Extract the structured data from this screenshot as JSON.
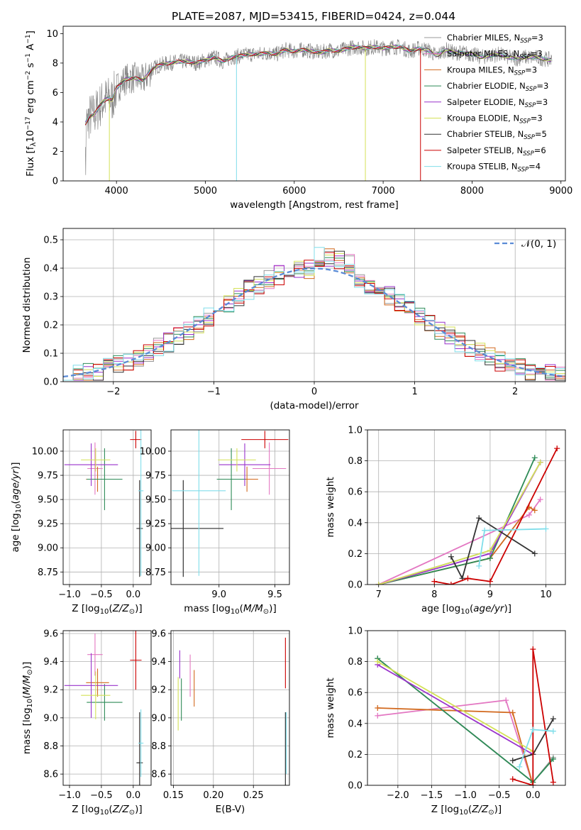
{
  "figure_title": "PLATE=2087, MJD=53415, FIBERID=0424, z=0.044",
  "colors": {
    "Chabrier MILES": "#999999",
    "Salpeter MILES": "#e377c2",
    "Kroupa MILES": "#d2691e",
    "Chabrier ELODIE": "#2e8b57",
    "Salpeter ELODIE": "#9932cc",
    "Kroupa ELODIE": "#d4e157",
    "Chabrier STELIB": "#333333",
    "Salpeter STELIB": "#cc0000",
    "Kroupa STELIB": "#80deea",
    "gaussian": "#5b8bd6",
    "grid": "#b0b0b0"
  },
  "chart_data": [
    {
      "id": "spectrum",
      "type": "line",
      "xlabel": "wavelength [Angstrom, rest frame]",
      "ylabel": "Flux [f",
      "xlim": [
        3400,
        9050
      ],
      "ylim": [
        0,
        10.5
      ],
      "xticks": [
        "4000",
        "5000",
        "6000",
        "7000",
        "8000",
        "9000"
      ],
      "yticks": [
        "0",
        "2",
        "4",
        "6",
        "8",
        "10"
      ],
      "legend": [
        {
          "name": "Chabrier MILES",
          "n": "3"
        },
        {
          "name": "Salpeter MILES",
          "n": "3"
        },
        {
          "name": "Kroupa MILES",
          "n": "3"
        },
        {
          "name": "Chabrier ELODIE",
          "n": "3"
        },
        {
          "name": "Salpeter ELODIE",
          "n": "3"
        },
        {
          "name": "Kroupa ELODIE",
          "n": "3"
        },
        {
          "name": "Chabrier STELIB",
          "n": "5"
        },
        {
          "name": "Salpeter STELIB",
          "n": "6"
        },
        {
          "name": "Kroupa STELIB",
          "n": "4"
        }
      ],
      "data_points": [
        [
          3650,
          3.9
        ],
        [
          3700,
          4.4
        ],
        [
          3750,
          4.5
        ],
        [
          3800,
          5.0
        ],
        [
          3850,
          5.4
        ],
        [
          3900,
          5.6
        ],
        [
          3950,
          5.5
        ],
        [
          4000,
          6.3
        ],
        [
          4100,
          6.9
        ],
        [
          4200,
          7.0
        ],
        [
          4300,
          6.8
        ],
        [
          4400,
          7.6
        ],
        [
          4500,
          7.9
        ],
        [
          4600,
          8.0
        ],
        [
          4700,
          8.1
        ],
        [
          4800,
          8.1
        ],
        [
          4900,
          8.0
        ],
        [
          5000,
          8.2
        ],
        [
          5100,
          8.4
        ],
        [
          5200,
          8.1
        ],
        [
          5300,
          8.4
        ],
        [
          5400,
          8.5
        ],
        [
          5500,
          8.6
        ],
        [
          5600,
          8.6
        ],
        [
          5700,
          8.7
        ],
        [
          5800,
          8.6
        ],
        [
          5900,
          8.9
        ],
        [
          6000,
          8.8
        ],
        [
          6100,
          8.9
        ],
        [
          6200,
          8.8
        ],
        [
          6300,
          8.7
        ],
        [
          6400,
          8.9
        ],
        [
          6500,
          8.8
        ],
        [
          6600,
          9.0
        ],
        [
          6700,
          9.1
        ],
        [
          6800,
          9.0
        ],
        [
          6900,
          9.1
        ],
        [
          7000,
          9.0
        ],
        [
          7100,
          9.1
        ],
        [
          7200,
          9.1
        ],
        [
          7300,
          8.8
        ],
        [
          7400,
          9.0
        ],
        [
          7500,
          8.9
        ],
        [
          7600,
          8.5
        ],
        [
          7700,
          8.9
        ],
        [
          7800,
          8.7
        ],
        [
          7900,
          8.7
        ],
        [
          8000,
          8.6
        ],
        [
          8100,
          8.4
        ],
        [
          8200,
          8.5
        ],
        [
          8300,
          8.6
        ],
        [
          8400,
          8.4
        ],
        [
          8500,
          8.3
        ],
        [
          8600,
          8.4
        ],
        [
          8700,
          8.4
        ],
        [
          8800,
          8.3
        ],
        [
          8900,
          8.2
        ]
      ]
    },
    {
      "id": "residual-histogram",
      "type": "line",
      "xlabel": "(data-model)/error",
      "ylabel": "Normed distribution",
      "xlim": [
        -2.5,
        2.5
      ],
      "ylim": [
        0,
        0.54
      ],
      "xticks": [
        "−2",
        "−1",
        "0",
        "1",
        "2"
      ],
      "yticks": [
        "0.0",
        "0.1",
        "0.2",
        "0.3",
        "0.4",
        "0.5"
      ],
      "legend_label": "𝒩(0, 1)",
      "gaussian": {
        "mean": 0,
        "sigma": 1
      }
    },
    {
      "id": "age-vs-Z",
      "type": "scatter",
      "xlabel": "Z [log",
      "ylabel": "age  [log",
      "xlim": [
        -1.1,
        0.28
      ],
      "ylim": [
        8.62,
        10.22
      ],
      "xticks": [
        "−1.0",
        "−0.5",
        "0.0"
      ],
      "yticks": [
        "8.75",
        "9.00",
        "9.25",
        "9.50",
        "9.75",
        "10.00"
      ],
      "points": [
        {
          "series": "Chabrier MILES",
          "x": 0.1,
          "y": 9.2,
          "xerr": 0.04,
          "yerr": 0.5
        },
        {
          "series": "Salpeter MILES",
          "x": -0.6,
          "y": 9.82,
          "xerr": 0.12,
          "yerr": 0.27
        },
        {
          "series": "Kroupa MILES",
          "x": -0.56,
          "y": 9.71,
          "xerr": 0.18,
          "yerr": 0.13
        },
        {
          "series": "Chabrier ELODIE",
          "x": -0.45,
          "y": 9.71,
          "xerr": 0.28,
          "yerr": 0.32
        },
        {
          "series": "Salpeter ELODIE",
          "x": -0.66,
          "y": 9.86,
          "xerr": 0.42,
          "yerr": 0.22
        },
        {
          "series": "Kroupa ELODIE",
          "x": -0.59,
          "y": 9.91,
          "xerr": 0.23,
          "yerr": 0.12
        },
        {
          "series": "Chabrier STELIB",
          "x": 0.1,
          "y": 9.2,
          "xerr": 0.05,
          "yerr": 0.5
        },
        {
          "series": "Salpeter STELIB",
          "x": 0.04,
          "y": 10.12,
          "xerr": 0.09,
          "yerr": 0.09
        },
        {
          "series": "Kroupa STELIB",
          "x": 0.12,
          "y": 9.59,
          "xerr": 0.04,
          "yerr": 0.88
        }
      ]
    },
    {
      "id": "age-vs-mass",
      "type": "scatter",
      "xlabel": "mass [log",
      "ylabel": "",
      "xlim": [
        8.57,
        9.63
      ],
      "ylim": [
        8.62,
        10.22
      ],
      "xticks": [
        "9.0",
        "9.5"
      ],
      "yticks": [
        "8.75",
        "9.00",
        "9.25",
        "9.50",
        "9.75",
        "10.00"
      ],
      "points": [
        {
          "series": "Chabrier MILES",
          "x": 8.68,
          "y": 9.2,
          "xerr": 0.36,
          "yerr": 0.5
        },
        {
          "series": "Salpeter MILES",
          "x": 9.45,
          "y": 9.82,
          "xerr": 0.15,
          "yerr": 0.27
        },
        {
          "series": "Kroupa MILES",
          "x": 9.25,
          "y": 9.71,
          "xerr": 0.1,
          "yerr": 0.13
        },
        {
          "series": "Chabrier ELODIE",
          "x": 9.11,
          "y": 9.71,
          "xerr": 0.13,
          "yerr": 0.32
        },
        {
          "series": "Salpeter ELODIE",
          "x": 9.23,
          "y": 9.86,
          "xerr": 0.23,
          "yerr": 0.22
        },
        {
          "series": "Kroupa ELODIE",
          "x": 9.16,
          "y": 9.91,
          "xerr": 0.17,
          "yerr": 0.12
        },
        {
          "series": "Chabrier STELIB",
          "x": 8.68,
          "y": 9.2,
          "xerr": 0.36,
          "yerr": 0.5
        },
        {
          "series": "Salpeter STELIB",
          "x": 9.41,
          "y": 10.12,
          "xerr": 0.21,
          "yerr": 0.09
        },
        {
          "series": "Kroupa STELIB",
          "x": 8.82,
          "y": 9.59,
          "xerr": 0.24,
          "yerr": 0.88
        }
      ]
    },
    {
      "id": "mass-weight-vs-age",
      "type": "line",
      "xlabel": "age  [log",
      "ylabel": "mass weight",
      "xlim": [
        6.8,
        10.35
      ],
      "ylim": [
        0,
        1.0
      ],
      "xticks": [
        "7",
        "8",
        "9",
        "10"
      ],
      "yticks": [
        "0.0",
        "0.2",
        "0.4",
        "0.6",
        "0.8",
        "1.0"
      ],
      "series": [
        {
          "name": "Chabrier MILES",
          "x": [
            7.0,
            9.0,
            9.9
          ],
          "y": [
            0.0,
            0.22,
            0.79
          ]
        },
        {
          "name": "Salpeter MILES",
          "x": [
            7.0,
            9.7,
            9.9
          ],
          "y": [
            0.0,
            0.45,
            0.55
          ]
        },
        {
          "name": "Kroupa MILES",
          "x": [
            7.0,
            9.0,
            9.7,
            9.8
          ],
          "y": [
            0.0,
            0.17,
            0.5,
            0.48
          ]
        },
        {
          "name": "Chabrier ELODIE",
          "x": [
            7.0,
            9.0,
            9.8
          ],
          "y": [
            0.0,
            0.17,
            0.82
          ]
        },
        {
          "name": "Salpeter ELODIE",
          "x": [
            7.0,
            9.0,
            9.9
          ],
          "y": [
            0.0,
            0.2,
            0.79
          ]
        },
        {
          "name": "Kroupa ELODIE",
          "x": [
            7.0,
            9.0,
            9.9
          ],
          "y": [
            0.0,
            0.22,
            0.79
          ]
        },
        {
          "name": "Chabrier STELIB",
          "x": [
            8.3,
            8.5,
            8.8,
            9.8
          ],
          "y": [
            0.18,
            0.04,
            0.43,
            0.2
          ]
        },
        {
          "name": "Salpeter STELIB",
          "x": [
            8.0,
            8.3,
            8.6,
            9.0,
            10.2
          ],
          "y": [
            0.02,
            0.0,
            0.04,
            0.02,
            0.88
          ]
        },
        {
          "name": "Kroupa STELIB",
          "x": [
            8.8,
            8.9,
            10.0
          ],
          "y": [
            0.12,
            0.35,
            0.36
          ]
        }
      ]
    },
    {
      "id": "mass-vs-Z",
      "type": "scatter",
      "xlabel": "Z [log",
      "ylabel": "mass [log",
      "xlim": [
        -1.1,
        0.28
      ],
      "ylim": [
        8.52,
        9.62
      ],
      "xticks": [
        "−1.0",
        "−0.5",
        "0.0"
      ],
      "yticks": [
        "8.6",
        "8.8",
        "9.0",
        "9.2",
        "9.4",
        "9.6"
      ],
      "points": [
        {
          "series": "Chabrier MILES",
          "x": 0.1,
          "y": 8.68,
          "xerr": 0.04,
          "yerr": 0.36
        },
        {
          "series": "Salpeter MILES",
          "x": -0.6,
          "y": 9.45,
          "xerr": 0.12,
          "yerr": 0.15
        },
        {
          "series": "Kroupa MILES",
          "x": -0.56,
          "y": 9.25,
          "xerr": 0.18,
          "yerr": 0.1
        },
        {
          "series": "Chabrier ELODIE",
          "x": -0.45,
          "y": 9.11,
          "xerr": 0.28,
          "yerr": 0.13
        },
        {
          "series": "Salpeter ELODIE",
          "x": -0.66,
          "y": 9.23,
          "xerr": 0.42,
          "yerr": 0.23
        },
        {
          "series": "Kroupa ELODIE",
          "x": -0.59,
          "y": 9.16,
          "xerr": 0.23,
          "yerr": 0.17
        },
        {
          "series": "Chabrier STELIB",
          "x": 0.1,
          "y": 8.68,
          "xerr": 0.05,
          "yerr": 0.36
        },
        {
          "series": "Salpeter STELIB",
          "x": 0.04,
          "y": 9.41,
          "xerr": 0.09,
          "yerr": 0.21
        },
        {
          "series": "Kroupa STELIB",
          "x": 0.12,
          "y": 8.82,
          "xerr": 0.04,
          "yerr": 0.24
        }
      ]
    },
    {
      "id": "mass-vs-EBV",
      "type": "scatter",
      "xlabel": "E(B-V)",
      "ylabel": "",
      "xlim": [
        0.147,
        0.295
      ],
      "ylim": [
        8.52,
        9.62
      ],
      "xticks": [
        "0.15",
        "0.20",
        "0.25"
      ],
      "yticks": [
        "8.6",
        "8.8",
        "9.0",
        "9.2",
        "9.4",
        "9.6"
      ],
      "points": [
        {
          "series": "Chabrier MILES",
          "x": 0.29,
          "y": 8.68,
          "xerr": 0.0,
          "yerr": 0.36
        },
        {
          "series": "Salpeter MILES",
          "x": 0.171,
          "y": 9.3,
          "xerr": 0.0,
          "yerr": 0.15
        },
        {
          "series": "Kroupa MILES",
          "x": 0.176,
          "y": 9.21,
          "xerr": 0.0,
          "yerr": 0.13
        },
        {
          "series": "Chabrier ELODIE",
          "x": 0.16,
          "y": 9.13,
          "xerr": 0.0,
          "yerr": 0.15
        },
        {
          "series": "Salpeter ELODIE",
          "x": 0.158,
          "y": 9.38,
          "xerr": 0.0,
          "yerr": 0.1
        },
        {
          "series": "Kroupa ELODIE",
          "x": 0.156,
          "y": 9.1,
          "xerr": 0.0,
          "yerr": 0.19
        },
        {
          "series": "Chabrier STELIB",
          "x": 0.29,
          "y": 8.68,
          "xerr": 0.0,
          "yerr": 0.36
        },
        {
          "series": "Salpeter STELIB",
          "x": 0.29,
          "y": 9.39,
          "xerr": 0.0,
          "yerr": 0.18
        },
        {
          "series": "Kroupa STELIB",
          "x": 0.291,
          "y": 8.82,
          "xerr": 0.0,
          "yerr": 0.22
        }
      ]
    },
    {
      "id": "mass-weight-vs-Z",
      "type": "line",
      "xlabel": "Z [log",
      "ylabel": "mass weight",
      "xlim": [
        -2.45,
        0.48
      ],
      "ylim": [
        0,
        1.0
      ],
      "xticks": [
        "−2.0",
        "−1.5",
        "−1.0",
        "−0.5",
        "0.0"
      ],
      "yticks": [
        "0.0",
        "0.2",
        "0.4",
        "0.6",
        "0.8",
        "1.0"
      ],
      "series": [
        {
          "name": "Chabrier MILES",
          "x": [
            -2.3,
            0.0,
            0.3
          ],
          "y": [
            0.82,
            0.02,
            0.18
          ]
        },
        {
          "name": "Salpeter MILES",
          "x": [
            -2.3,
            -0.4,
            0.0
          ],
          "y": [
            0.45,
            0.55,
            0.0
          ]
        },
        {
          "name": "Kroupa MILES",
          "x": [
            -2.3,
            -0.3,
            0.0
          ],
          "y": [
            0.5,
            0.47,
            0.0
          ]
        },
        {
          "name": "Chabrier ELODIE",
          "x": [
            -2.3,
            0.0,
            0.3
          ],
          "y": [
            0.82,
            0.02,
            0.17
          ]
        },
        {
          "name": "Salpeter ELODIE",
          "x": [
            -2.3,
            0.0
          ],
          "y": [
            0.78,
            0.2
          ]
        },
        {
          "name": "Kroupa ELODIE",
          "x": [
            -2.3,
            0.0
          ],
          "y": [
            0.8,
            0.22
          ]
        },
        {
          "name": "Chabrier STELIB",
          "x": [
            -0.3,
            0.0,
            0.3
          ],
          "y": [
            0.16,
            0.2,
            0.43
          ]
        },
        {
          "name": "Salpeter STELIB",
          "x": [
            -0.3,
            0.0,
            0.0,
            0.3
          ],
          "y": [
            0.04,
            0.0,
            0.88,
            0.02
          ]
        },
        {
          "name": "Kroupa STELIB",
          "x": [
            -0.2,
            0.0,
            0.3
          ],
          "y": [
            0.12,
            0.36,
            0.35
          ]
        }
      ]
    }
  ]
}
